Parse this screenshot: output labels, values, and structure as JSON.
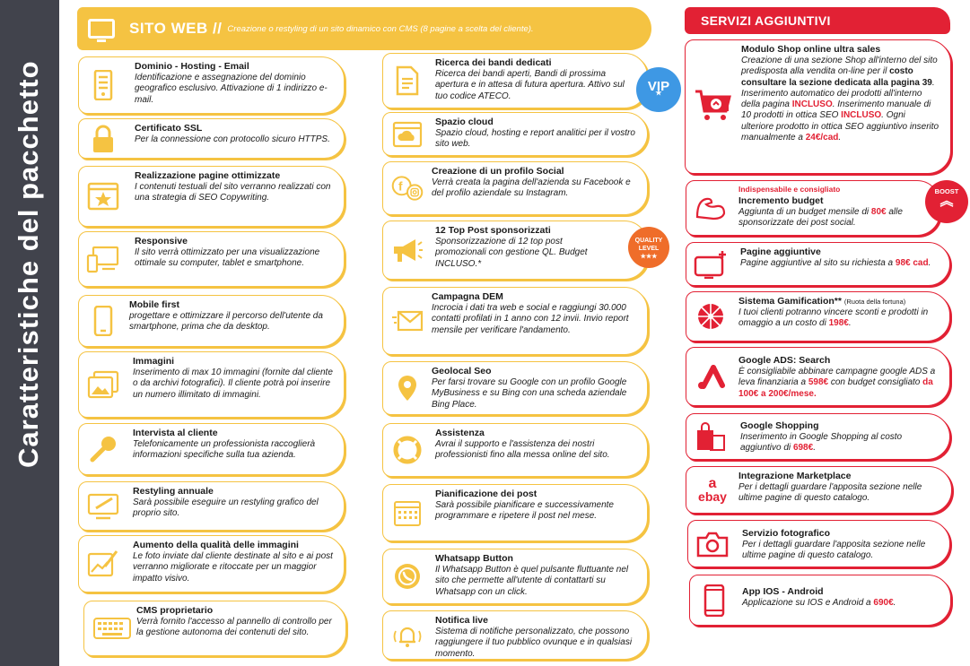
{
  "sidebar_title": "Caratteristiche del pacchetto",
  "web_header": {
    "title": "SITO WEB //",
    "subtitle": "Creazione o restyling di un sito dinamico con CMS (8 pagine a scelta del cliente)."
  },
  "left_column": [
    {
      "title": "Dominio - Hosting - Email",
      "desc": "Identificazione e assegnazione del dominio geografico esclusivo. Attivazione di 1 indirizzo e-mail.",
      "icon": "server-icon"
    },
    {
      "title": "Certificato SSL",
      "desc": "Per la connessione con protocollo sicuro HTTPS.",
      "icon": "lock-icon"
    },
    {
      "title": "Realizzazione pagine ottimizzate",
      "desc": "I contenuti testuali del sito verranno realizzati con una strategia di SEO Copywriting.",
      "icon": "star-window-icon"
    },
    {
      "title": "Responsive",
      "desc": "Il sito verrà ottimizzato per una visualizzazione ottimale su computer, tablet e smartphone.",
      "icon": "devices-icon"
    },
    {
      "title": "Mobile first",
      "desc": "progettare e ottimizzare il percorso dell'utente da smartphone, prima che da desktop.",
      "icon": "smartphone-icon"
    },
    {
      "title": "Immagini",
      "desc": "Inserimento di max 10 immagini (fornite dal cliente o da archivi fotografici). Il cliente potrà poi inserire un numero illimitato di immagini.",
      "icon": "images-icon"
    },
    {
      "title": "Intervista al cliente",
      "desc": "Telefonicamente un professionista raccoglierà informazioni specifiche sulla tua azienda.",
      "icon": "microphone-icon"
    },
    {
      "title": "Restyling annuale",
      "desc": "Sarà possibile eseguire un restyling grafico del proprio sito.",
      "icon": "design-monitor-icon"
    },
    {
      "title": "Aumento della qualità delle immagini",
      "desc": "Le foto inviate dal cliente destinate al sito e ai post verranno migliorate e ritoccate per un maggior impatto visivo.",
      "icon": "photo-edit-icon"
    },
    {
      "title": "CMS proprietario",
      "desc": "Verrà fornito l'accesso al pannello di controllo per la gestione autonoma dei contenuti del sito.",
      "icon": "keyboard-icon"
    }
  ],
  "mid_column": [
    {
      "title": "Ricerca dei bandi dedicati",
      "desc": "Ricerca dei bandi aperti, Bandi di prossima apertura e in attesa di futura apertura. Attivo sul tuo codice ATECO.",
      "icon": "document-icon"
    },
    {
      "title": "Spazio cloud",
      "desc": "Spazio cloud, hosting e report analitici per il vostro sito web.",
      "icon": "cloud-icon"
    },
    {
      "title": "Creazione di un profilo Social",
      "desc": "Verrà creata la pagina dell'azienda su Facebook e del profilo aziendale su Instagram.",
      "icon": "social-icon"
    },
    {
      "title": "12 Top Post sponsorizzati",
      "desc": "Sponsorizzazione di 12 top post promozionali con gestione QL. Budget INCLUSO.*",
      "icon": "megaphone-icon"
    },
    {
      "title": "Campagna DEM",
      "desc": "Incrocia i dati tra web e social e raggiungi 30.000 contatti profilati in 1 anno con 12 invii. Invio report mensile per verificare l'andamento.",
      "icon": "email-icon"
    },
    {
      "title": "Geolocal Seo",
      "desc": "Per farsi trovare su Google con un profilo Google MyBusiness e su Bing con una scheda aziendale Bing Place.",
      "icon": "location-pin-icon"
    },
    {
      "title": "Assistenza",
      "desc": "Avrai il supporto e l'assistenza dei nostri professionisti fino alla messa online del sito.",
      "icon": "lifebuoy-icon"
    },
    {
      "title": "Pianificazione dei post",
      "desc": "Sarà possibile pianificare e successivamente programmare e ripetere il post nel mese.",
      "icon": "calendar-icon"
    },
    {
      "title": "Whatsapp Button",
      "desc": "Il Whatsapp Button è quel pulsante fluttuante nel sito che permette all'utente di contattarti su Whatsapp con un click.",
      "icon": "whatsapp-icon"
    },
    {
      "title": "Notifica live",
      "desc": "Sistema di notifiche personalizzato, che possono raggiungere il tuo pubblico ovunque e in qualsiasi momento.",
      "icon": "bell-icon"
    }
  ],
  "badges": {
    "vip": "VIP",
    "vip_star": "★",
    "quality_line1": "QUALITY",
    "quality_line2": "LEVEL",
    "quality_stars": "★★★",
    "boost": "BOOST",
    "boost_chevron": "︽"
  },
  "services": {
    "header": "SERVIZI AGGIUNTIVI",
    "shop": {
      "title": "Modulo Shop online ultra sales",
      "p1": "Creazione di una sezione Shop all'interno del sito predisposta alla vendita on-line per il ",
      "b1": "costo consultare la sezione dedicata alla pagina 39",
      "p2": ". Inserimento automatico dei prodotti all'interno della pagina ",
      "r1": "INCLUSO",
      "p3": ". Inserimento manuale di 10 prodotti in ottica SEO ",
      "r2": "INCLUSO",
      "p4": ". Ogni ulteriore prodotto in ottica SEO aggiuntivo inserito manualmente a ",
      "r3": "24€/cad",
      "p5": ".",
      "icon": "shopping-cart-icon"
    },
    "budget": {
      "tag": "Indispensabile e consigliato",
      "title": "Incremento budget",
      "p1": "Aggiunta di un budget mensile di ",
      "r1": "80€",
      "p2": " alle sponsorizzate dei post social.",
      "icon": "muscle-icon"
    },
    "pages": {
      "title": "Pagine aggiuntive",
      "p1": "Pagine aggiuntive al sito su richiesta a ",
      "r1": "98€ cad",
      "p2": ".",
      "icon": "monitor-plus-icon"
    },
    "gamification": {
      "title": "Sistema Gamification**",
      "title_note": "(Ruota della fortuna)",
      "p1": "I tuoi clienti potranno vincere sconti e prodotti in omaggio a un costo di ",
      "r1": "198€",
      "p2": ".",
      "icon": "fortune-wheel-icon"
    },
    "ads": {
      "title": "Google ADS: Search",
      "p1": "È consigliabile abbinare campagne google ADS a leva finanziaria a ",
      "r1": "598€",
      "p2": " con budget consigliato ",
      "r2": "da 100€ a 200€/mese.",
      "icon": "google-ads-icon"
    },
    "shopping": {
      "title": "Google Shopping",
      "p1": "Inserimento in Google Shopping al costo aggiuntivo di ",
      "r1": "698€",
      "p2": ".",
      "icon": "shopping-bags-icon"
    },
    "marketplace": {
      "title": "Integrazione Marketplace",
      "desc": "Per i dettagli guardare l'apposita sezione nelle ultime pagine di questo catalogo.",
      "icon_a": "a",
      "icon_b": "ebay",
      "icon": "amazon-ebay-icon"
    },
    "photo": {
      "title": "Servizio fotografico",
      "desc": "Per i dettagli guardare l'apposita sezione nelle ultime pagine di questo catalogo.",
      "icon": "camera-icon"
    },
    "app": {
      "title": "App IOS - Android",
      "p1": "Applicazione su IOS e Android a ",
      "r1": "690€",
      "p2": ".",
      "icon": "smartphone-icon"
    }
  },
  "colors": {
    "yellow": "#f5c342",
    "red": "#e22134",
    "sidebar": "#41434c"
  }
}
